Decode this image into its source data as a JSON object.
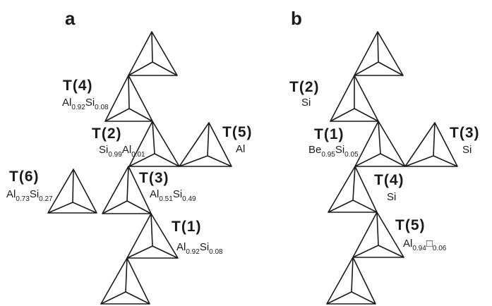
{
  "panels": {
    "a": {
      "letter": "a",
      "sites": {
        "t4": {
          "label": "T(4)",
          "occupancy": [
            {
              "el": "Al",
              "sub": "0.92"
            },
            {
              "el": "Si",
              "sub": "0.08"
            }
          ]
        },
        "t2": {
          "label": "T(2)",
          "occupancy": [
            {
              "el": "Si",
              "sub": "0.99"
            },
            {
              "el": "Al",
              "sub": "0.01"
            }
          ]
        },
        "t5": {
          "label": "T(5)",
          "occupancy": [
            {
              "el": "Al",
              "sub": ""
            }
          ]
        },
        "t6": {
          "label": "T(6)",
          "occupancy": [
            {
              "el": "Al",
              "sub": "0.73"
            },
            {
              "el": "Si",
              "sub": "0.27"
            }
          ]
        },
        "t3": {
          "label": "T(3)",
          "occupancy": [
            {
              "el": "Al",
              "sub": "0.51"
            },
            {
              "el": "Si",
              "sub": "0.49"
            }
          ]
        },
        "t1": {
          "label": "T(1)",
          "occupancy": [
            {
              "el": "Al",
              "sub": "0.92"
            },
            {
              "el": "Si",
              "sub": "0.08"
            }
          ]
        }
      }
    },
    "b": {
      "letter": "b",
      "sites": {
        "t2": {
          "label": "T(2)",
          "occupancy": [
            {
              "el": "Si",
              "sub": ""
            }
          ]
        },
        "t1": {
          "label": "T(1)",
          "occupancy": [
            {
              "el": "Be",
              "sub": "0.95"
            },
            {
              "el": "Si",
              "sub": "0.05"
            }
          ]
        },
        "t3": {
          "label": "T(3)",
          "occupancy": [
            {
              "el": "Si",
              "sub": ""
            }
          ]
        },
        "t4": {
          "label": "T(4)",
          "occupancy": [
            {
              "el": "Si",
              "sub": ""
            }
          ]
        },
        "t5": {
          "label": "T(5)",
          "occupancy": [
            {
              "el": "Al",
              "sub": "0.94"
            },
            {
              "el": "□",
              "sub": "0.06"
            }
          ]
        }
      }
    }
  }
}
